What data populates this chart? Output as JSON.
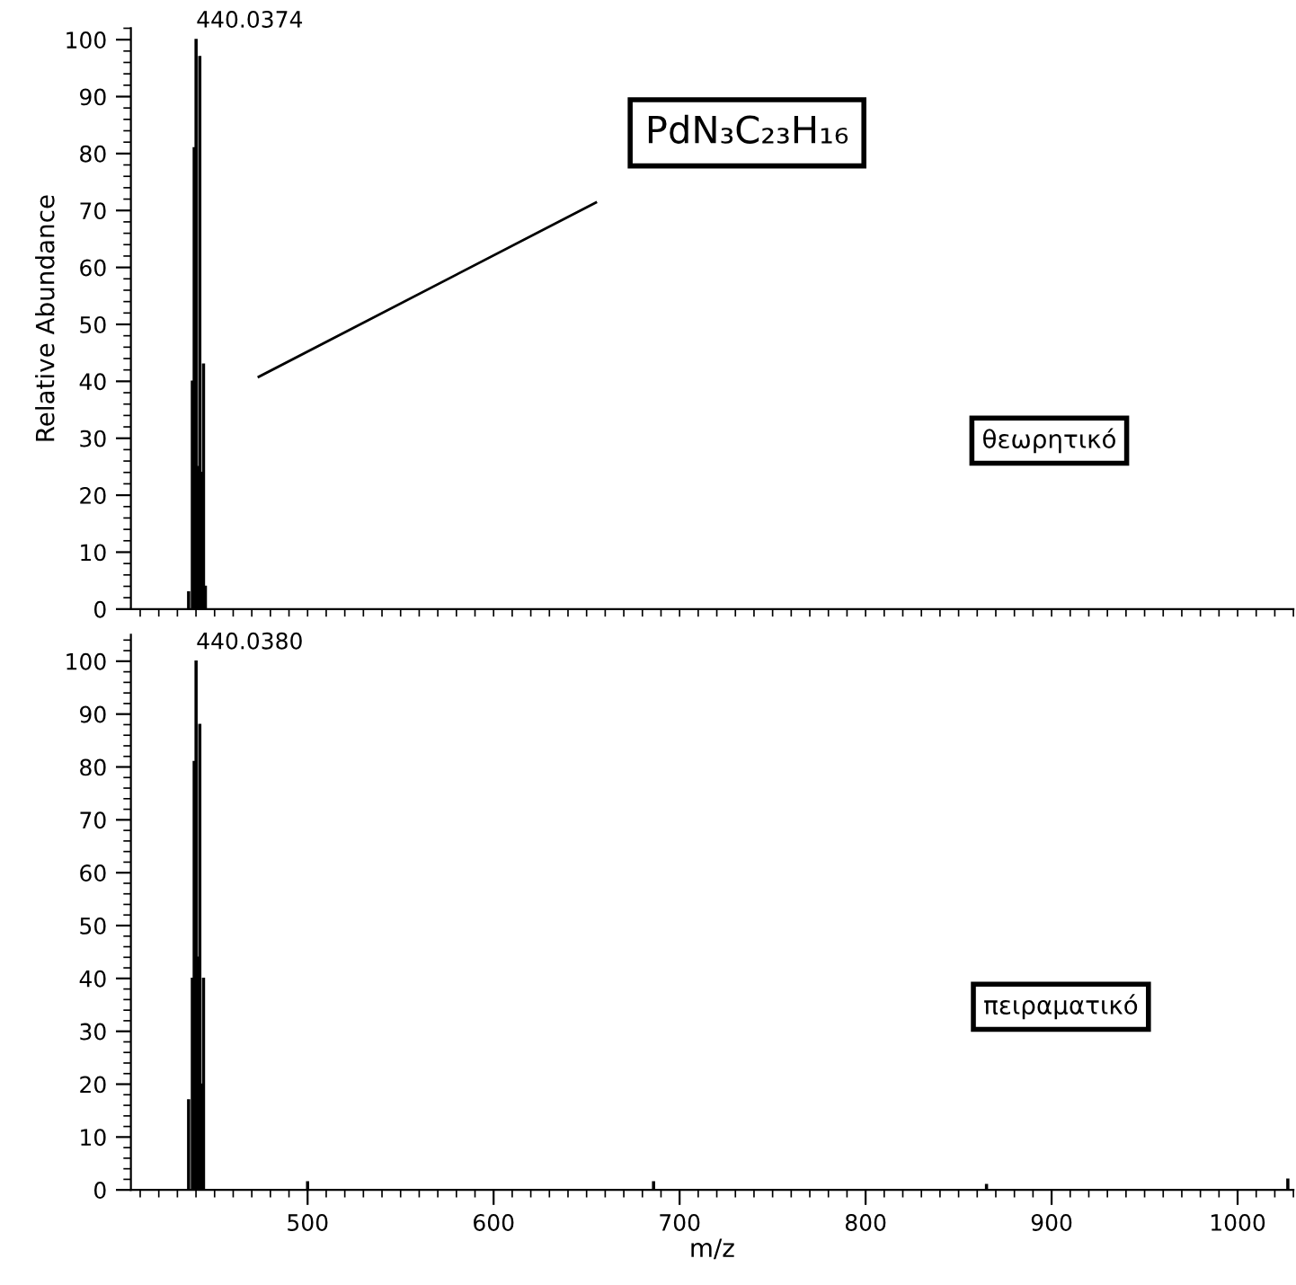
{
  "chart_data": [
    {
      "type": "bar",
      "ylabel": "Relative Abundance",
      "xlim": [
        405,
        1030
      ],
      "ylim": [
        0,
        102
      ],
      "yticks": [
        0,
        10,
        20,
        30,
        40,
        50,
        60,
        70,
        80,
        90,
        100
      ],
      "tick_labels": "y",
      "grid": false,
      "series": [
        {
          "color": "#000000",
          "x": [
            436.04,
            438.04,
            439.04,
            440.04,
            441.04,
            442.04,
            443.04,
            444.04,
            445.04
          ],
          "values": [
            3,
            40,
            81,
            100,
            25,
            97,
            24,
            43,
            4
          ]
        }
      ],
      "annotations": [
        {
          "text": "440.0374",
          "x": 440.04,
          "y": 100
        },
        "PdN₃C₂₃H₁₆",
        "θεωρητικό"
      ]
    },
    {
      "type": "bar",
      "xlabel": "m/z",
      "xlim": [
        405,
        1030
      ],
      "ylim": [
        0,
        105
      ],
      "xticks": [
        500,
        600,
        700,
        800,
        900,
        1000
      ],
      "yticks": [
        0,
        10,
        20,
        30,
        40,
        50,
        60,
        70,
        80,
        90,
        100
      ],
      "grid": false,
      "series": [
        {
          "color": "#000000",
          "x": [
            436.04,
            438.04,
            439.04,
            440.04,
            441.04,
            442.04,
            443.04,
            444.04,
            500,
            686,
            865,
            1027
          ],
          "values": [
            17,
            40,
            81,
            100,
            44,
            88,
            20,
            40,
            1.5,
            1.5,
            1,
            2
          ]
        }
      ],
      "annotations": [
        {
          "text": "440.0380",
          "x": 440.04,
          "y": 100
        },
        "πειραματικό"
      ]
    }
  ]
}
